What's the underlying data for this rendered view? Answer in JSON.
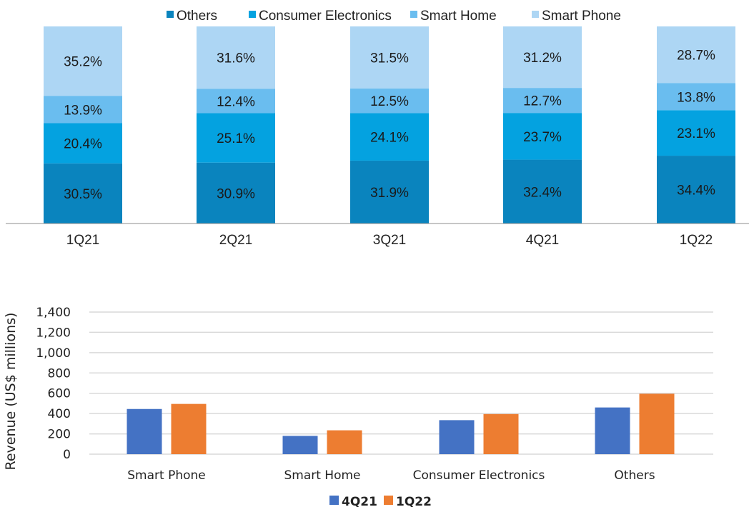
{
  "chart_data": [
    {
      "type": "bar",
      "stacked": true,
      "percent": true,
      "title": "",
      "categories": [
        "1Q21",
        "2Q21",
        "3Q21",
        "4Q21",
        "1Q22"
      ],
      "series": [
        {
          "name": "Others",
          "color": "#0A84BE",
          "values": [
            30.5,
            30.9,
            31.9,
            32.4,
            34.4
          ]
        },
        {
          "name": "Consumer Electronics",
          "color": "#04A2E0",
          "values": [
            20.4,
            25.1,
            24.1,
            23.7,
            23.1
          ]
        },
        {
          "name": "Smart Home",
          "color": "#6ABDEF",
          "values": [
            13.9,
            12.4,
            12.5,
            12.7,
            13.8
          ]
        },
        {
          "name": "Smart Phone",
          "color": "#ADD6F4",
          "values": [
            35.2,
            31.6,
            31.5,
            31.2,
            28.7
          ]
        }
      ],
      "labels": [
        [
          "30.5%",
          "30.9%",
          "31.9%",
          "32.4%",
          "34.4%"
        ],
        [
          "20.4%",
          "25.1%",
          "24.1%",
          "23.7%",
          "23.1%"
        ],
        [
          "13.9%",
          "12.4%",
          "12.5%",
          "12.7%",
          "13.8%"
        ],
        [
          "35.2%",
          "31.6%",
          "31.5%",
          "31.2%",
          "28.7%"
        ]
      ],
      "legend": "top",
      "ylim": [
        0,
        100
      ]
    },
    {
      "type": "bar",
      "title": "",
      "xlabel": "",
      "ylabel": "Revenue (US$  millions)",
      "categories": [
        "Smart Phone",
        "Smart Home",
        "Consumer Electronics",
        "Others"
      ],
      "series": [
        {
          "name": "4Q21",
          "color": "#4472C4",
          "values": [
            445,
            180,
            335,
            460
          ]
        },
        {
          "name": "1Q22",
          "color": "#ED7D31",
          "values": [
            495,
            235,
            395,
            595
          ]
        }
      ],
      "ylim": [
        0,
        1400
      ],
      "yticks": [
        0,
        200,
        400,
        600,
        800,
        1000,
        1200,
        1400
      ],
      "ytick_labels": [
        "0",
        "200",
        "400",
        "600",
        "800",
        "1,000",
        "1,200",
        "1,400"
      ],
      "grid": true,
      "legend": "bottom"
    }
  ]
}
